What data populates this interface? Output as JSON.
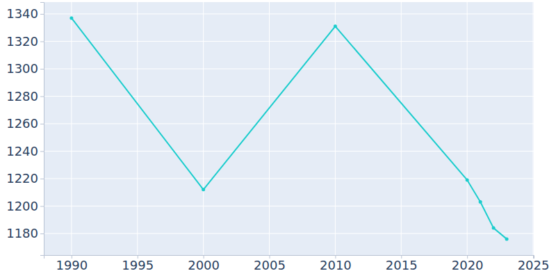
{
  "chart_data": {
    "type": "line",
    "x": [
      1990,
      2000,
      2010,
      2020,
      2021,
      2022,
      2023
    ],
    "values": [
      1337,
      1212,
      1331,
      1219,
      1203,
      1184,
      1176
    ],
    "color": "#1ccdcd",
    "marker": "circle",
    "xlim": [
      1987.9,
      2025.05
    ],
    "ylim": [
      1164.3,
      1348.6
    ],
    "xticks": [
      1990,
      1995,
      2000,
      2005,
      2010,
      2015,
      2020,
      2025
    ],
    "yticks": [
      1180,
      1200,
      1220,
      1240,
      1260,
      1280,
      1300,
      1320,
      1340
    ],
    "grid": true
  }
}
